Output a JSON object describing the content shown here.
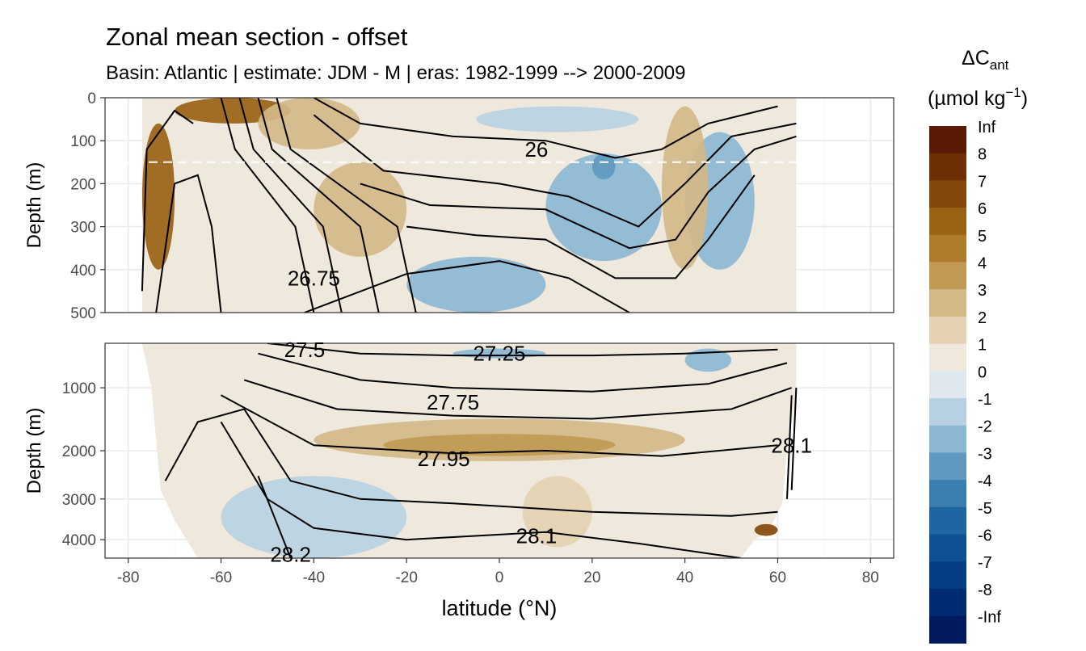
{
  "title": "Zonal mean section - offset",
  "subtitle": "Basin: Atlantic | estimate: JDM - M | eras: 1982-1999 --> 2000-2009",
  "chart_data": {
    "type": "heatmap",
    "title": "Zonal mean section - offset",
    "subtitle": "Basin: Atlantic | estimate: JDM - M | eras: 1982-1999 --> 2000-2009",
    "xlabel": "latitude (°N)",
    "ylabel": "Depth (m)",
    "xlim": [
      -85,
      85
    ],
    "x_ticks": [
      -80,
      -60,
      -40,
      -20,
      0,
      20,
      40,
      60,
      80
    ],
    "x_tick_labels": [
      "-80",
      "-60",
      "-40",
      "-20",
      "0",
      "20",
      "40",
      "60",
      "80"
    ],
    "grid": true,
    "panels": [
      {
        "name": "upper",
        "ylim": [
          0,
          500
        ],
        "y_ticks": [
          0,
          100,
          200,
          300,
          400,
          500
        ],
        "y_tick_labels": [
          "0",
          "100",
          "200",
          "300",
          "400",
          "500"
        ],
        "y_reversed": true,
        "reference_line_depth": 150
      },
      {
        "name": "lower",
        "ylim": [
          500,
          4500
        ],
        "y_ticks": [
          1000,
          2000,
          3000,
          4000
        ],
        "y_tick_labels": [
          "1000",
          "2000",
          "3000",
          "4000"
        ],
        "y_reversed": true,
        "y_scale": "sqrt"
      }
    ],
    "colorbar": {
      "title_main": "ΔC",
      "title_sub": "ant",
      "unit_open": "(µmol kg",
      "unit_sup": "−1",
      "unit_close": ")",
      "labels": [
        "Inf",
        "8",
        "7",
        "6",
        "5",
        "4",
        "3",
        "2",
        "1",
        "0",
        "-1",
        "-2",
        "-3",
        "-4",
        "-5",
        "-6",
        "-7",
        "-8",
        "-Inf"
      ],
      "colors": [
        "#5b1a06",
        "#6e2f07",
        "#84480a",
        "#9a6214",
        "#ae7c2c",
        "#c09a52",
        "#d3b888",
        "#e4d2b2",
        "#efe8dc",
        "#dfe8ef",
        "#b8d1e2",
        "#8cb7d2",
        "#5f99c0",
        "#3b7fb0",
        "#1e66a1",
        "#0e5193",
        "#063e83",
        "#022c72",
        "#00195f"
      ]
    },
    "contour_labels": [
      {
        "text": "26",
        "lat": 8,
        "depth": 120
      },
      {
        "text": "26.75",
        "lat": -40,
        "depth": 420
      },
      {
        "text": "27.25",
        "lat": 0,
        "depth": 600
      },
      {
        "text": "27.75",
        "lat": -10,
        "depth": 1200
      },
      {
        "text": "27.95",
        "lat": -12,
        "depth": 2150
      },
      {
        "text": "28.1",
        "lat": 8,
        "depth": 3900
      },
      {
        "text": "28.2",
        "lat": -45,
        "depth": 4400
      },
      {
        "text": "27.5",
        "lat": -42,
        "depth": 560
      },
      {
        "text": "28.1",
        "lat": 63,
        "depth": 1900
      }
    ],
    "anomaly_regions": [
      {
        "panel": "upper",
        "lat": [
          -70,
          -45
        ],
        "depth": [
          0,
          60
        ],
        "value": 6
      },
      {
        "panel": "upper",
        "lat": [
          -77,
          -70
        ],
        "depth": [
          60,
          400
        ],
        "value": 6
      },
      {
        "panel": "upper",
        "lat": [
          -52,
          -30
        ],
        "depth": [
          0,
          120
        ],
        "value": 3
      },
      {
        "panel": "upper",
        "lat": [
          -40,
          -20
        ],
        "depth": [
          150,
          370
        ],
        "value": 3
      },
      {
        "panel": "upper",
        "lat": [
          -5,
          30
        ],
        "depth": [
          20,
          80
        ],
        "value": -1
      },
      {
        "panel": "upper",
        "lat": [
          10,
          35
        ],
        "depth": [
          130,
          380
        ],
        "value": -2
      },
      {
        "panel": "upper",
        "lat": [
          20,
          25
        ],
        "depth": [
          130,
          190
        ],
        "value": -3
      },
      {
        "panel": "upper",
        "lat": [
          -20,
          10
        ],
        "depth": [
          370,
          500
        ],
        "value": -2
      },
      {
        "panel": "upper",
        "lat": [
          40,
          55
        ],
        "depth": [
          80,
          400
        ],
        "value": -2
      },
      {
        "panel": "upper",
        "lat": [
          35,
          45
        ],
        "depth": [
          20,
          400
        ],
        "value": 3
      },
      {
        "panel": "lower",
        "lat": [
          -40,
          40
        ],
        "depth": [
          1450,
          2200
        ],
        "value": 3
      },
      {
        "panel": "lower",
        "lat": [
          -25,
          25
        ],
        "depth": [
          1700,
          2100
        ],
        "value": 4
      },
      {
        "panel": "lower",
        "lat": [
          -10,
          10
        ],
        "depth": [
          550,
          650
        ],
        "value": -2
      },
      {
        "panel": "lower",
        "lat": [
          40,
          50
        ],
        "depth": [
          550,
          800
        ],
        "value": -2
      },
      {
        "panel": "lower",
        "lat": [
          -60,
          -20
        ],
        "depth": [
          2500,
          4500
        ],
        "value": -1
      },
      {
        "panel": "lower",
        "lat": [
          55,
          60
        ],
        "depth": [
          3600,
          3900
        ],
        "value": 7
      },
      {
        "panel": "lower",
        "lat": [
          5,
          20
        ],
        "depth": [
          2500,
          4200
        ],
        "value": 2
      }
    ]
  }
}
